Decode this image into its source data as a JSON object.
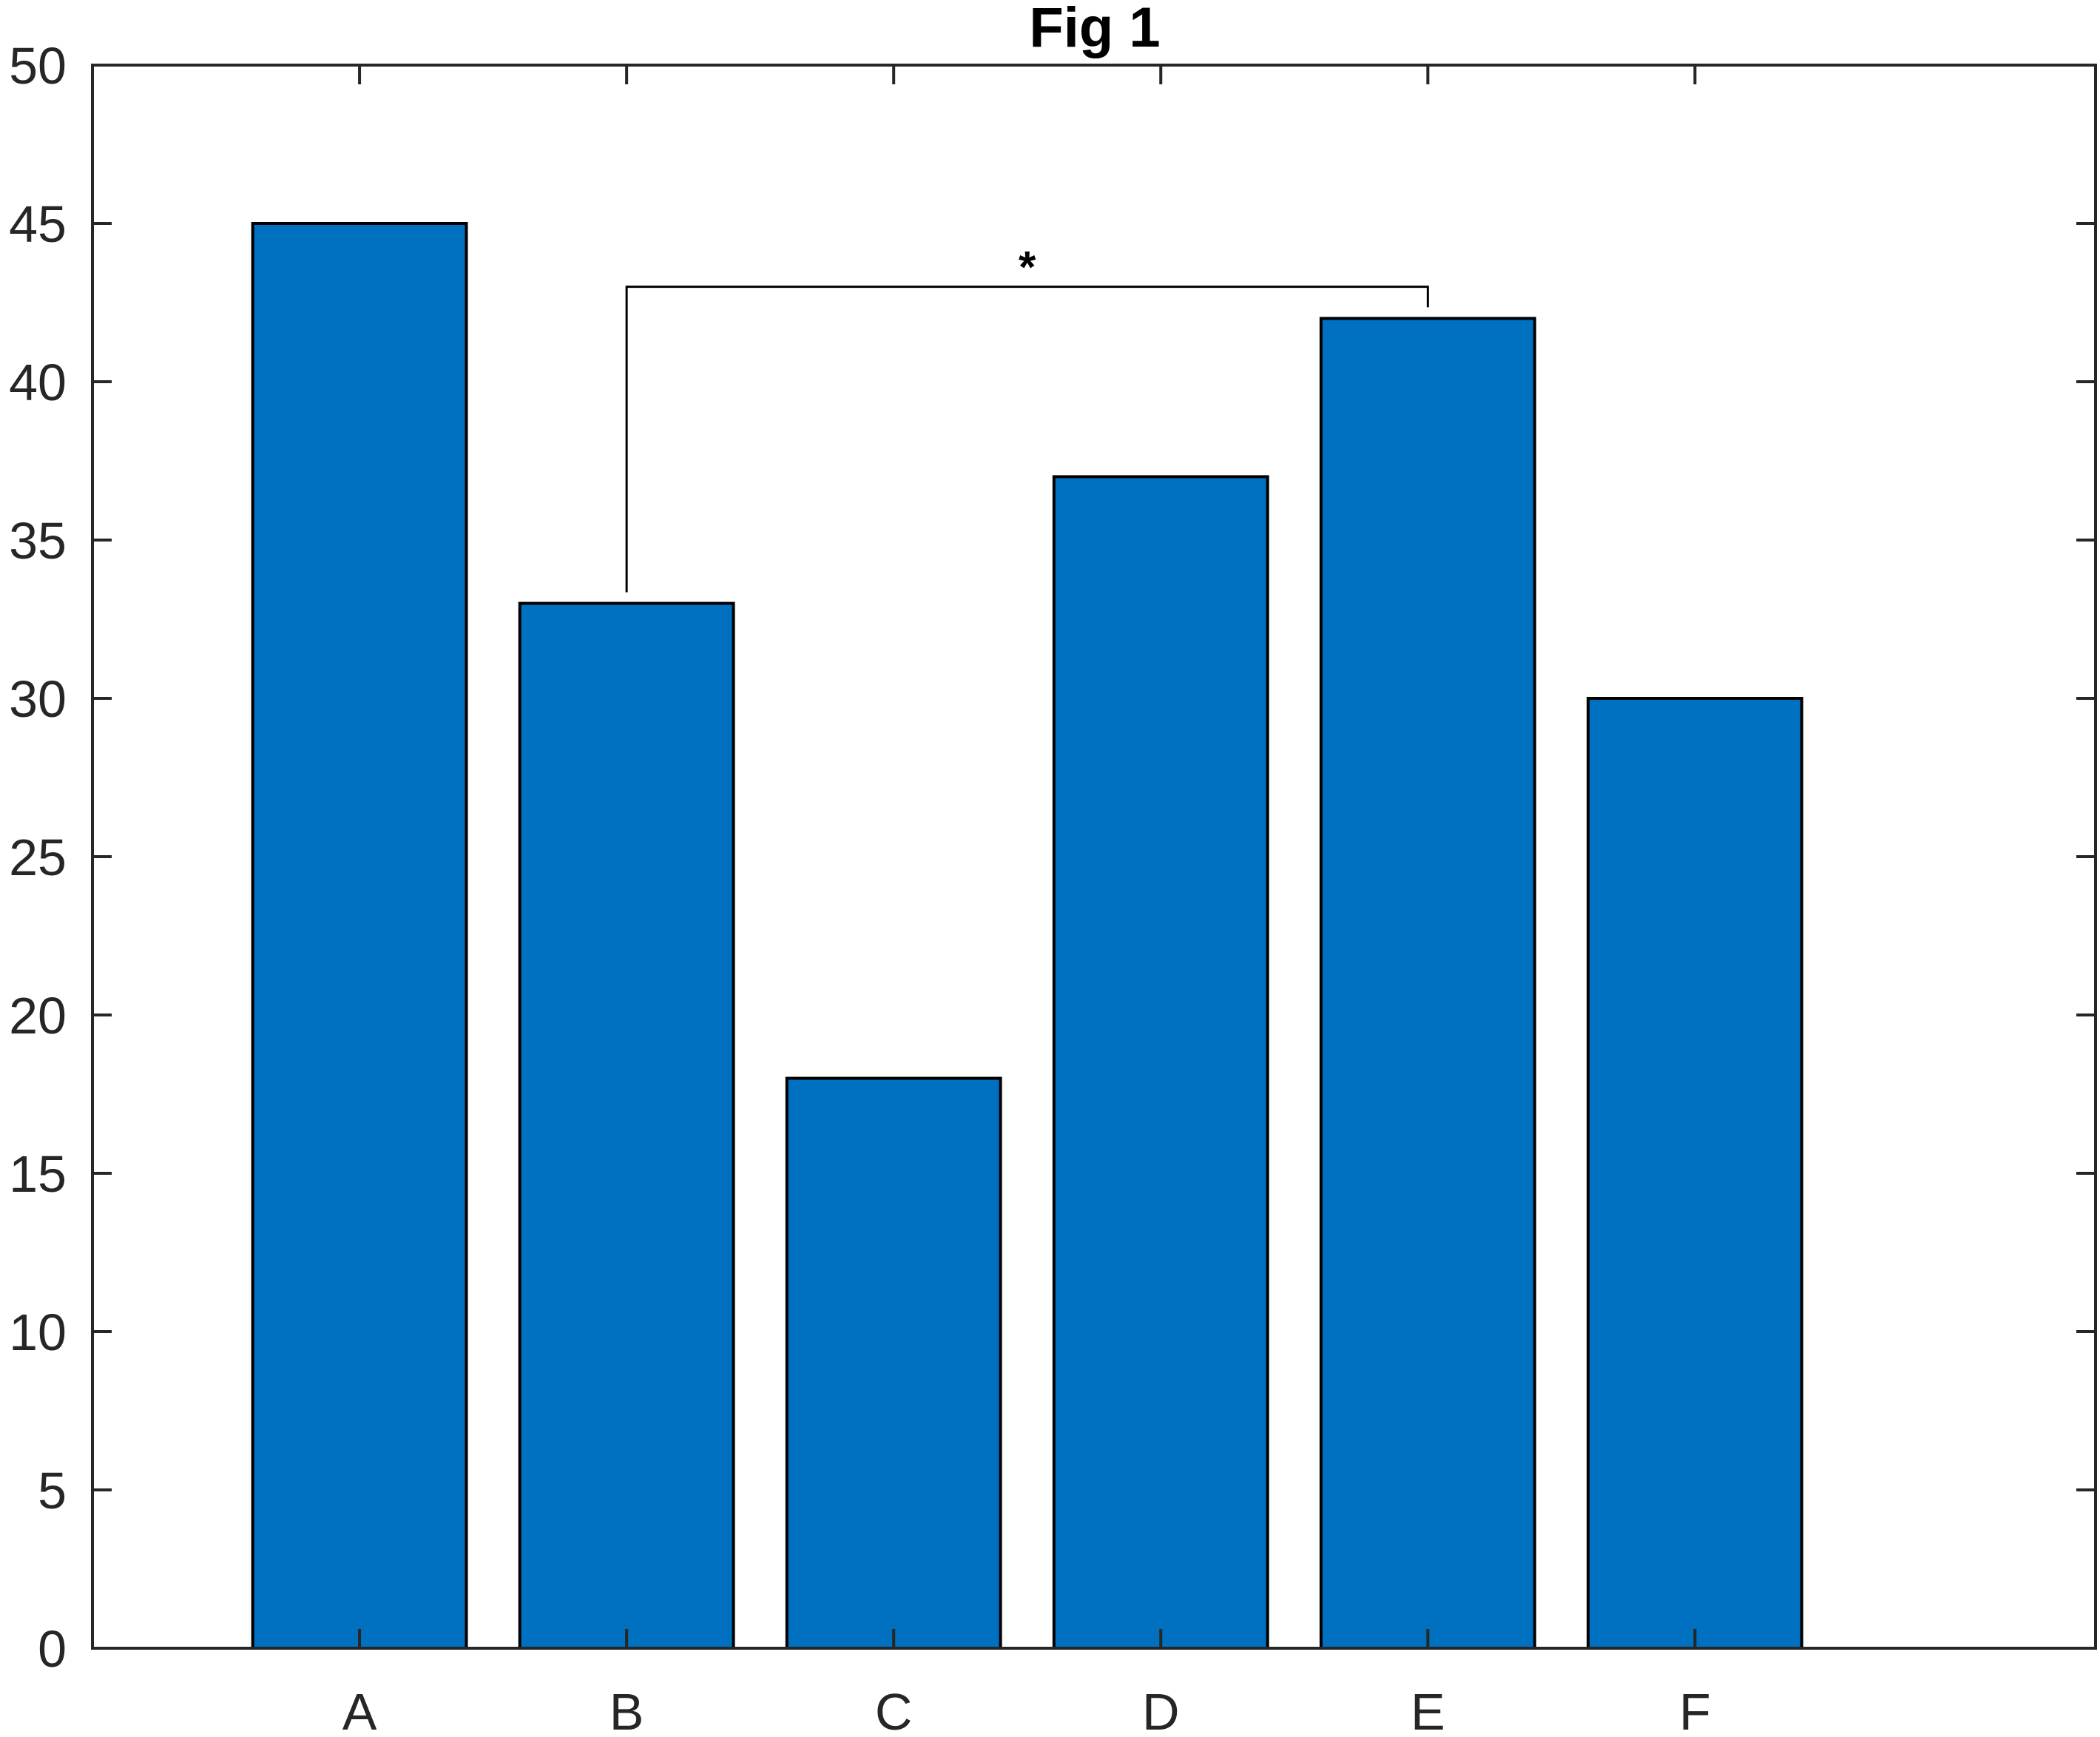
{
  "chart_data": {
    "type": "bar",
    "title": "Fig 1",
    "xlabel": "",
    "ylabel": "",
    "categories": [
      "A",
      "B",
      "C",
      "D",
      "E",
      "F"
    ],
    "values": [
      45,
      33,
      18,
      37,
      42,
      30
    ],
    "ylim": [
      0,
      50
    ],
    "yticks": [
      0,
      5,
      10,
      15,
      20,
      25,
      30,
      35,
      40,
      45,
      50
    ],
    "xlim": [
      0,
      7.5
    ],
    "grid": false,
    "colors": {
      "bar": "#0070C0",
      "edge": "#000000",
      "axis": "#262626"
    },
    "significance": {
      "from": "B",
      "to": "E",
      "label": "*",
      "y": 43
    }
  }
}
